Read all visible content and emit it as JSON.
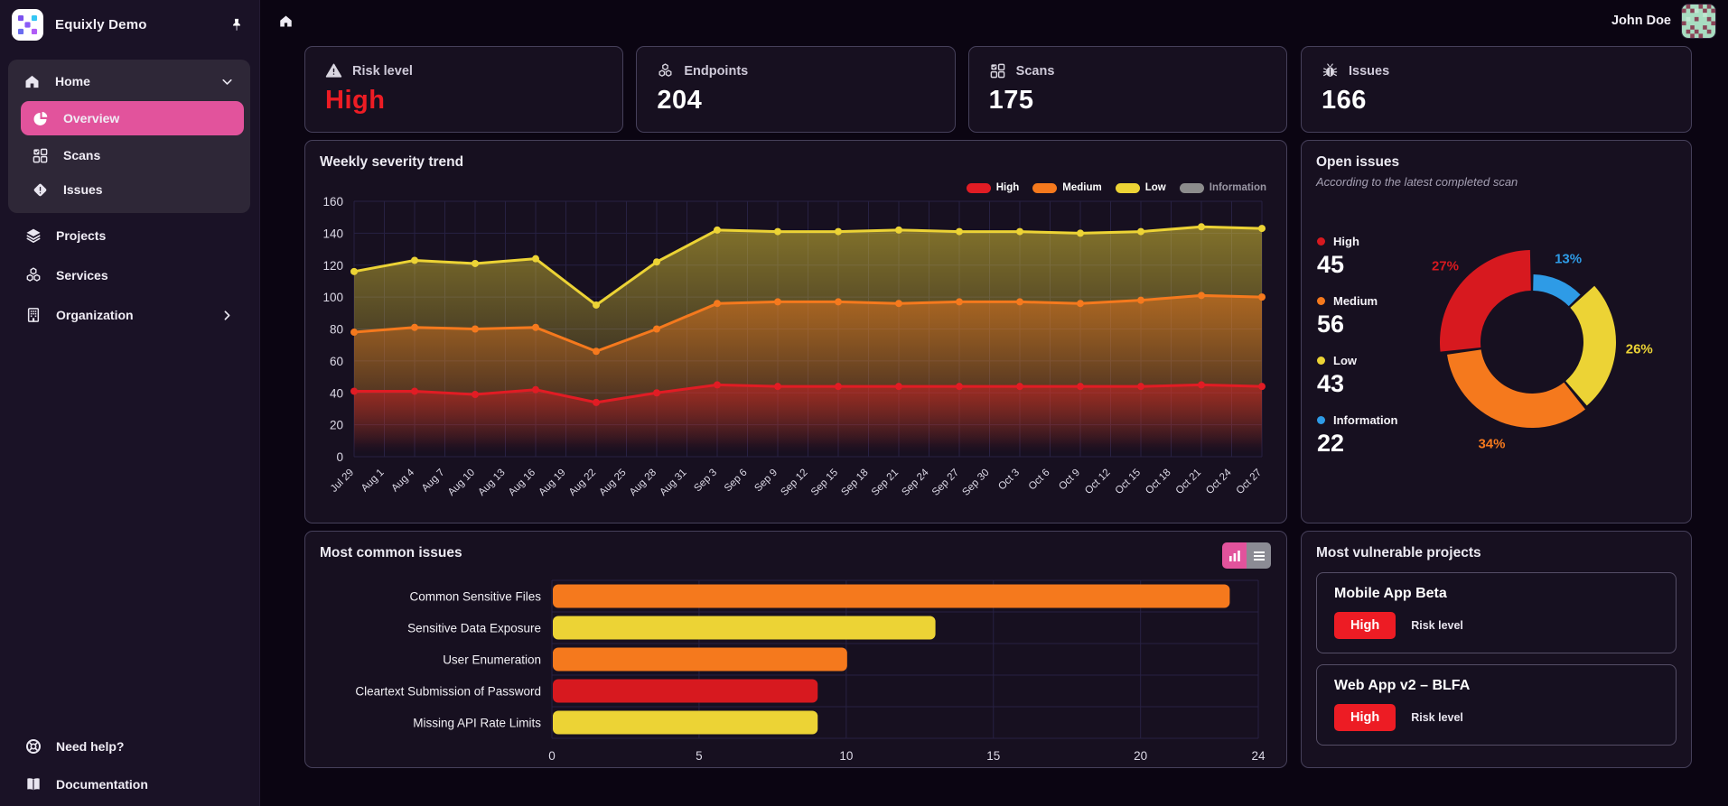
{
  "app": {
    "name": "Equixly Demo"
  },
  "topbar": {
    "user": "John Doe"
  },
  "sidebar": {
    "items": [
      {
        "label": "Home"
      },
      {
        "label": "Overview"
      },
      {
        "label": "Scans"
      },
      {
        "label": "Issues"
      },
      {
        "label": "Projects"
      },
      {
        "label": "Services"
      },
      {
        "label": "Organization"
      }
    ],
    "footer_items": [
      {
        "label": "Need help?"
      },
      {
        "label": "Documentation"
      }
    ]
  },
  "stats": [
    {
      "label": "Risk level",
      "value": "High"
    },
    {
      "label": "Endpoints",
      "value": "204"
    },
    {
      "label": "Scans",
      "value": "175"
    },
    {
      "label": "Issues",
      "value": "166"
    }
  ],
  "colors": {
    "accent_pink": "#e2539c",
    "high_red": "#ed1c24",
    "medium_orange": "#f5791d",
    "low_yellow": "#ecd335",
    "info_blue": "#2e9be6",
    "disabled_gray": "#8c8c8c"
  },
  "chart_data": [
    {
      "id": "severity_trend",
      "type": "area",
      "title": "Weekly severity trend",
      "x_labels": [
        "Jul 29",
        "Aug 1",
        "Aug 4",
        "Aug 7",
        "Aug 10",
        "Aug 13",
        "Aug 16",
        "Aug 19",
        "Aug 22",
        "Aug 25",
        "Aug 28",
        "Aug 31",
        "Sep 3",
        "Sep 6",
        "Sep 9",
        "Sep 12",
        "Sep 15",
        "Sep 18",
        "Sep 21",
        "Sep 24",
        "Sep 27",
        "Sep 30",
        "Oct 3",
        "Oct 6",
        "Oct 9",
        "Oct 12",
        "Oct 15",
        "Oct 18",
        "Oct 21",
        "Oct 24",
        "Oct 27"
      ],
      "x_point_step": 2,
      "ylim": [
        0,
        160
      ],
      "y_ticks": [
        0,
        20,
        40,
        60,
        80,
        100,
        120,
        140,
        160
      ],
      "grid": true,
      "legend_position": "top-right",
      "legend": [
        {
          "name": "High",
          "color": "#e11c24",
          "active": true
        },
        {
          "name": "Medium",
          "color": "#f5791d",
          "active": true
        },
        {
          "name": "Low",
          "color": "#ecd335",
          "active": true
        },
        {
          "name": "Information",
          "color": "#8c8c8c",
          "active": false
        }
      ],
      "series": [
        {
          "name": "Low",
          "color": "#ecd335",
          "values": [
            116,
            123,
            121,
            124,
            95,
            122,
            142,
            141,
            141,
            142,
            141,
            141,
            140,
            141,
            144,
            143
          ]
        },
        {
          "name": "Medium",
          "color": "#f5791d",
          "values": [
            78,
            81,
            80,
            81,
            66,
            80,
            96,
            97,
            97,
            96,
            97,
            97,
            96,
            98,
            101,
            100
          ]
        },
        {
          "name": "High",
          "color": "#e11c24",
          "values": [
            41,
            41,
            39,
            42,
            34,
            40,
            45,
            44,
            44,
            44,
            44,
            44,
            44,
            44,
            45,
            44
          ]
        }
      ]
    },
    {
      "id": "open_issues",
      "type": "pie",
      "title": "Open issues",
      "subtitle": "According to the latest completed scan",
      "slices": [
        {
          "name": "High",
          "count": 45,
          "pct": 27,
          "color": "#d7191f"
        },
        {
          "name": "Medium",
          "count": 56,
          "pct": 34,
          "color": "#f5791d"
        },
        {
          "name": "Low",
          "count": 43,
          "pct": 26,
          "color": "#ecd335"
        },
        {
          "name": "Information",
          "count": 22,
          "pct": 13,
          "color": "#2e9be6"
        }
      ]
    },
    {
      "id": "common_issues",
      "type": "bar",
      "title": "Most common issues",
      "categories": [
        "Common Sensitive Files",
        "Sensitive Data Exposure",
        "User Enumeration",
        "Cleartext Submission of Password",
        "Missing API Rate Limits"
      ],
      "values": [
        23,
        13,
        10,
        9,
        9
      ],
      "bar_colors": [
        "#f5791d",
        "#ecd335",
        "#f5791d",
        "#d7191f",
        "#ecd335"
      ],
      "x_ticks": [
        0,
        5,
        10,
        15,
        20,
        24
      ],
      "xlim": [
        0,
        24
      ]
    }
  ],
  "vulnerable": {
    "title": "Most vulnerable projects",
    "risk_level_label": "Risk level",
    "projects": [
      {
        "name": "Mobile App Beta",
        "risk": "High"
      },
      {
        "name": "Web App v2 – BLFA",
        "risk": "High"
      }
    ]
  }
}
